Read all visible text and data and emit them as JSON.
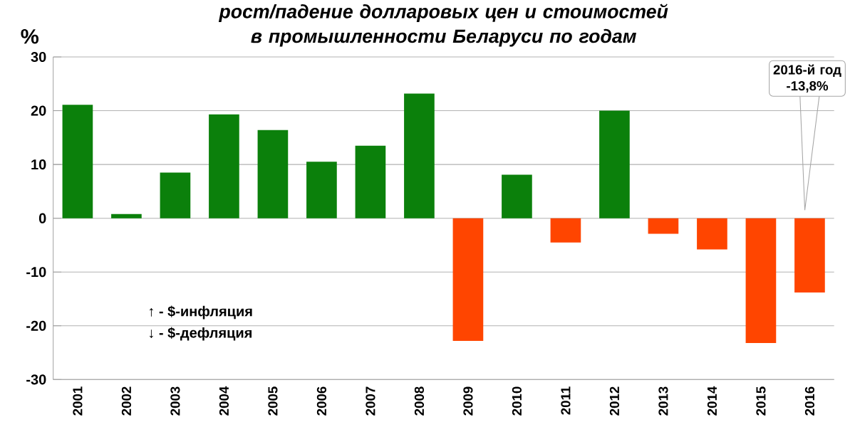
{
  "chart_data": {
    "type": "bar",
    "title": "рост/падение долларовых цен и стоимостей в промышленности Беларуси по годам",
    "ylabel": "%",
    "categories": [
      "2001",
      "2002",
      "2003",
      "2004",
      "2005",
      "2006",
      "2007",
      "2008",
      "2009",
      "2010",
      "2011",
      "2012",
      "2013",
      "2014",
      "2015",
      "2016"
    ],
    "values": [
      21.1,
      0.8,
      8.5,
      19.3,
      16.4,
      10.5,
      13.5,
      23.2,
      -22.8,
      8.1,
      -4.5,
      20.0,
      -2.9,
      -5.8,
      -23.2,
      -13.8
    ],
    "colors": [
      "#0b800b",
      "#0b800b",
      "#0b800b",
      "#0b800b",
      "#0b800b",
      "#0b800b",
      "#0b800b",
      "#0b800b",
      "#ff4500",
      "#0b800b",
      "#ff4500",
      "#0b800b",
      "#ff4500",
      "#ff4500",
      "#ff4500",
      "#ff4500"
    ],
    "ylim": [
      -30,
      30
    ],
    "yticks": [
      -30,
      -20,
      -10,
      0,
      10,
      20,
      30
    ],
    "grid": "y",
    "annotations": [
      "↑ - $-инфляция",
      "↓ - $-дефляция",
      "2016-й год -13,8%"
    ]
  }
}
